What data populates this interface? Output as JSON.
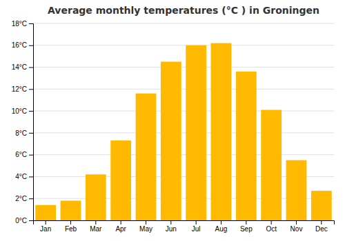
{
  "chart_data": {
    "type": "bar",
    "title": "Average monthly temperatures (°C ) in Groningen",
    "categories": [
      "Jan",
      "Feb",
      "Mar",
      "Apr",
      "May",
      "Jun",
      "Jul",
      "Aug",
      "Sep",
      "Oct",
      "Nov",
      "Dec"
    ],
    "values": [
      1.4,
      1.8,
      4.2,
      7.3,
      11.6,
      14.5,
      16.0,
      16.2,
      13.6,
      10.1,
      5.5,
      2.7
    ],
    "color": "#FFBA00",
    "ylim": [
      0,
      18
    ],
    "yticks": [
      {
        "value": 0,
        "label": "0°C"
      },
      {
        "value": 2,
        "label": "2°C"
      },
      {
        "value": 4,
        "label": "4°C"
      },
      {
        "value": 6,
        "label": "6°C"
      },
      {
        "value": 8,
        "label": "8°C"
      },
      {
        "value": 10,
        "label": "10°C"
      },
      {
        "value": 12,
        "label": "12°C"
      },
      {
        "value": 14,
        "label": "14°C"
      },
      {
        "value": 16,
        "label": "16°C"
      },
      {
        "value": 18,
        "label": "18°C"
      }
    ],
    "grid": true
  }
}
